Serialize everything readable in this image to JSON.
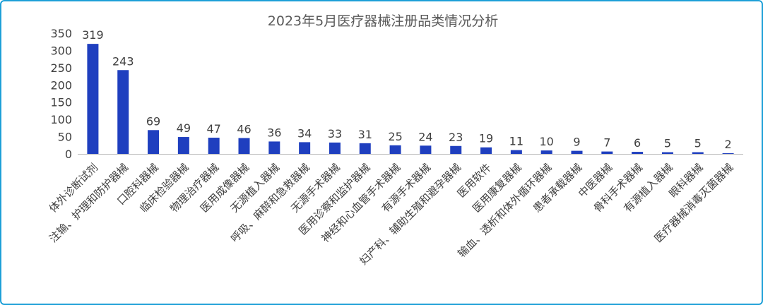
{
  "chart_data": {
    "type": "bar",
    "title": "2023年5月医疗器械注册品类情况分析",
    "xlabel": "",
    "ylabel": "",
    "ylim": [
      0,
      350
    ],
    "yticks": [
      0,
      50,
      100,
      150,
      200,
      250,
      300,
      350
    ],
    "grid": false,
    "legend": "none",
    "bar_color": "#1f3fbf",
    "categories": [
      "体外诊断试剂",
      "注输、护理和防护器械",
      "口腔科器械",
      "临床检验器械",
      "物理治疗器械",
      "医用成像器械",
      "无源植入器械",
      "呼吸、麻醉和急救器械",
      "无源手术器械",
      "医用诊察和监护器械",
      "神经和心血管手术器械",
      "有源手术器械",
      "妇产科、辅助生殖和避孕器械",
      "医用软件",
      "医用康复器械",
      "输血、透析和体外循环器械",
      "患者承载器械",
      "中医器械",
      "骨科手术器械",
      "有源植入器械",
      "眼科器械",
      "医疗器械消毒灭菌器械"
    ],
    "values": [
      319,
      243,
      69,
      49,
      47,
      46,
      36,
      34,
      33,
      31,
      25,
      24,
      23,
      19,
      11,
      10,
      9,
      7,
      6,
      5,
      5,
      2
    ]
  }
}
